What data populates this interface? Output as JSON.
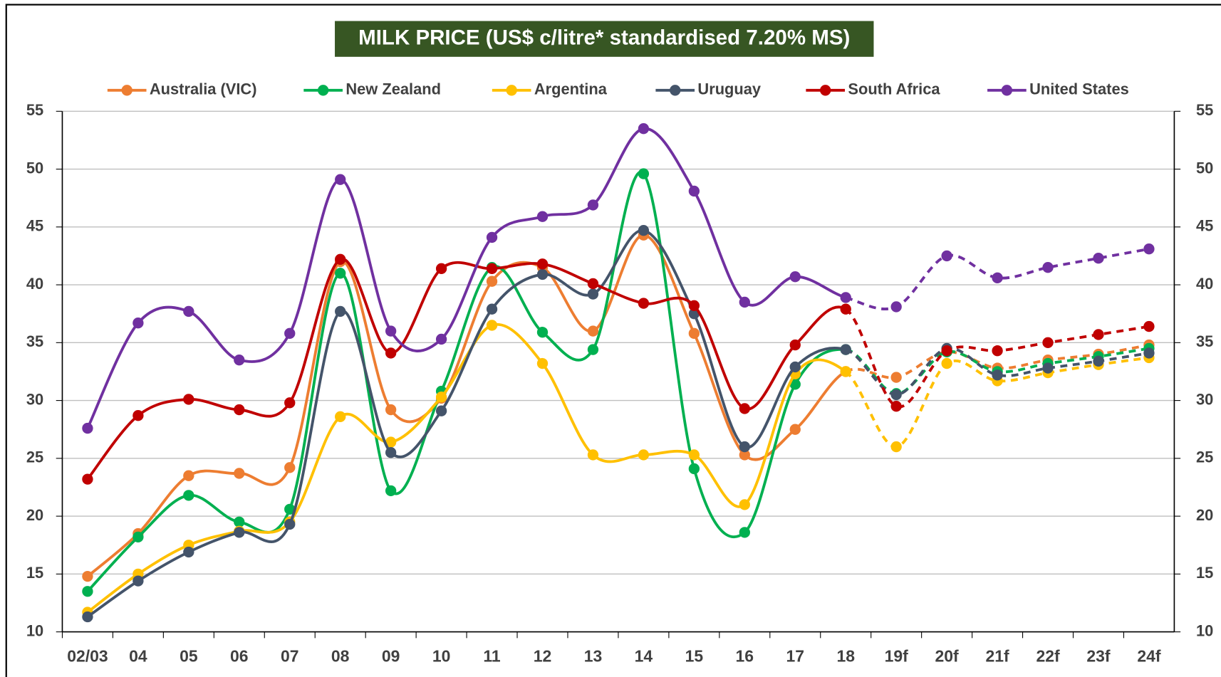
{
  "chart_data": {
    "type": "line",
    "title": "MILK PRICE (US$ c/litre* standardised 7.20% MS)",
    "categories": [
      "02/03",
      "04",
      "05",
      "06",
      "07",
      "08",
      "09",
      "10",
      "11",
      "12",
      "13",
      "14",
      "15",
      "16",
      "17",
      "18",
      "19f",
      "20f",
      "21f",
      "22f",
      "23f",
      "24f"
    ],
    "forecast_from_category": "18",
    "series": [
      {
        "name": "Australia (VIC)",
        "color": "#ed7d31",
        "values": [
          14.8,
          18.5,
          23.5,
          23.7,
          24.2,
          42.0,
          29.2,
          30.2,
          40.3,
          41.5,
          36.0,
          44.3,
          35.8,
          25.3,
          27.5,
          32.5,
          32.0,
          34.2,
          32.8,
          33.5,
          34.0,
          34.8
        ]
      },
      {
        "name": "New Zealand",
        "color": "#00b050",
        "values": [
          13.5,
          18.2,
          21.8,
          19.5,
          20.6,
          41.0,
          22.2,
          30.8,
          41.5,
          35.9,
          34.4,
          49.6,
          24.1,
          18.6,
          31.4,
          34.4,
          30.6,
          34.2,
          32.5,
          33.2,
          33.8,
          34.5
        ]
      },
      {
        "name": "Argentina",
        "color": "#ffc000",
        "values": [
          11.7,
          15.0,
          17.5,
          18.7,
          19.5,
          28.6,
          26.4,
          30.3,
          36.5,
          33.2,
          25.3,
          25.3,
          25.3,
          21.0,
          32.3,
          32.5,
          26.0,
          33.2,
          31.7,
          32.4,
          33.1,
          33.7
        ]
      },
      {
        "name": "Uruguay",
        "color": "#44546a",
        "values": [
          11.3,
          14.4,
          16.9,
          18.6,
          19.3,
          37.7,
          25.5,
          29.1,
          37.9,
          40.9,
          39.2,
          44.7,
          37.5,
          26.0,
          32.9,
          34.4,
          30.5,
          34.5,
          32.2,
          32.8,
          33.4,
          34.1
        ]
      },
      {
        "name": "South Africa",
        "color": "#c00000",
        "values": [
          23.2,
          28.7,
          30.1,
          29.2,
          29.8,
          42.2,
          34.1,
          41.4,
          41.4,
          41.8,
          40.1,
          38.4,
          38.2,
          29.3,
          34.8,
          37.9,
          29.5,
          34.3,
          34.3,
          35.0,
          35.7,
          36.4
        ]
      },
      {
        "name": "United States",
        "color": "#7030a0",
        "values": [
          27.6,
          36.7,
          37.7,
          33.5,
          35.8,
          49.1,
          36.0,
          35.3,
          44.1,
          45.9,
          46.9,
          53.5,
          48.1,
          38.5,
          40.7,
          38.9,
          38.1,
          42.5,
          40.6,
          41.5,
          42.3,
          43.1
        ]
      }
    ],
    "ylim": [
      10,
      55
    ],
    "yticks": [
      10,
      15,
      20,
      25,
      30,
      35,
      40,
      45,
      50,
      55
    ],
    "grid": true,
    "y2_mirror": true,
    "legend": "top",
    "smooth": true
  }
}
